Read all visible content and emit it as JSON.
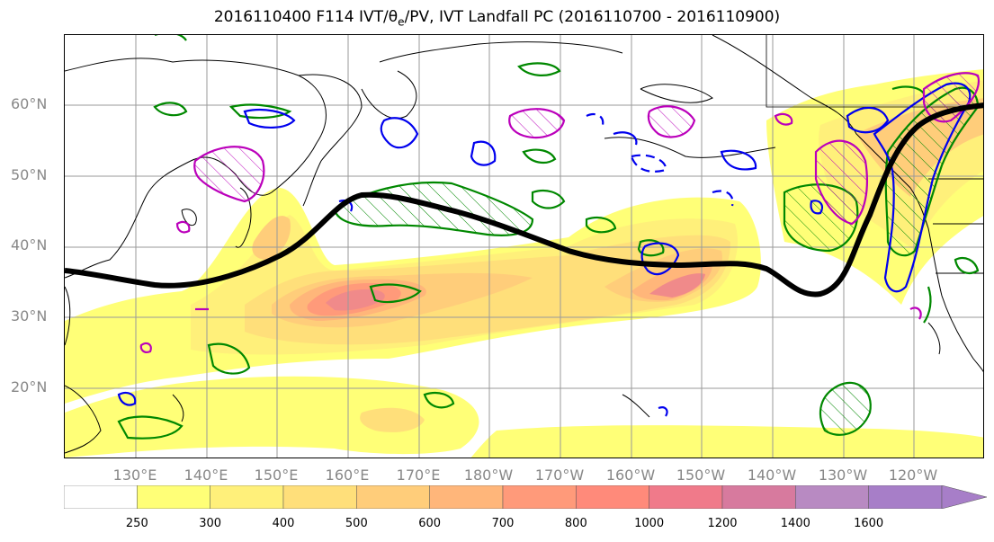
{
  "title": {
    "prefix": "2016110400 F114 IVT/",
    "theta_symbol": "θ",
    "theta_sub": "e",
    "suffix": "/PV, IVT Landfall PC (2016110700 - 2016110900)"
  },
  "latitude_labels": [
    "60°N",
    "50°N",
    "40°N",
    "30°N",
    "20°N"
  ],
  "longitude_labels": [
    "130°E",
    "140°E",
    "150°E",
    "160°E",
    "170°E",
    "180°W",
    "170°W",
    "160°W",
    "150°W",
    "140°W",
    "130°W",
    "120°W"
  ],
  "colorbar": {
    "ticks": [
      "250",
      "300",
      "400",
      "500",
      "600",
      "700",
      "800",
      "1000",
      "1200",
      "1400",
      "1600"
    ],
    "colors": [
      "#ffffff",
      "#ffff77",
      "#fff07a",
      "#ffdf7a",
      "#ffcd7a",
      "#ffb67a",
      "#ff9a7a",
      "#ff8a7a",
      "#f07a8a",
      "#d77a9e",
      "#b88ac2",
      "#a77ec8"
    ],
    "extend": "max"
  },
  "map": {
    "projection": "PlateCarree, central longitude 180",
    "extent": {
      "lon_min": 120,
      "lon_max": 250,
      "lat_min": 10,
      "lat_max": 70
    },
    "gridlines": true,
    "contour_colors": {
      "theta_e": "#0000ee",
      "pv": "#008800",
      "landfall_pc": "#bb00bb",
      "ivt_pc_line": "#000000"
    }
  }
}
